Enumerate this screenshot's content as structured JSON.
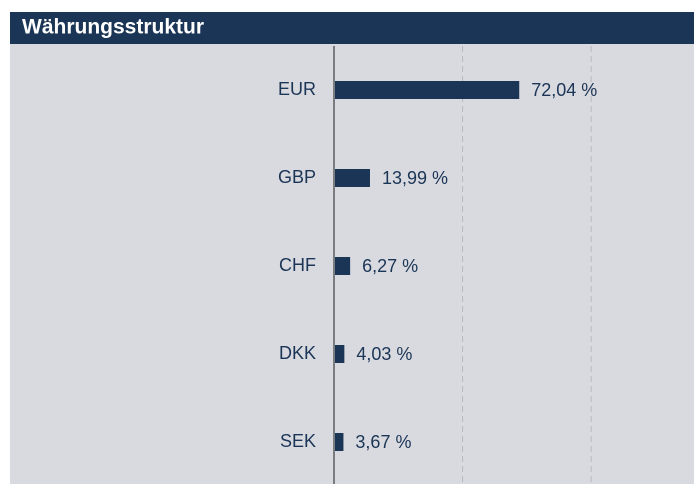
{
  "chart_data": {
    "type": "hbar",
    "title": "Währungsstruktur",
    "categories": [
      "EUR",
      "GBP",
      "CHF",
      "DKK",
      "SEK"
    ],
    "values": [
      72.04,
      13.99,
      6.27,
      4.03,
      3.67
    ],
    "value_labels": [
      "72,04 %",
      "13,99 %",
      "6,27 %",
      "4,03 %",
      "3,67 %"
    ],
    "color": "#1b3556",
    "xlim": [
      0,
      140
    ],
    "xticks": [
      0,
      50,
      100
    ],
    "grid": true
  }
}
